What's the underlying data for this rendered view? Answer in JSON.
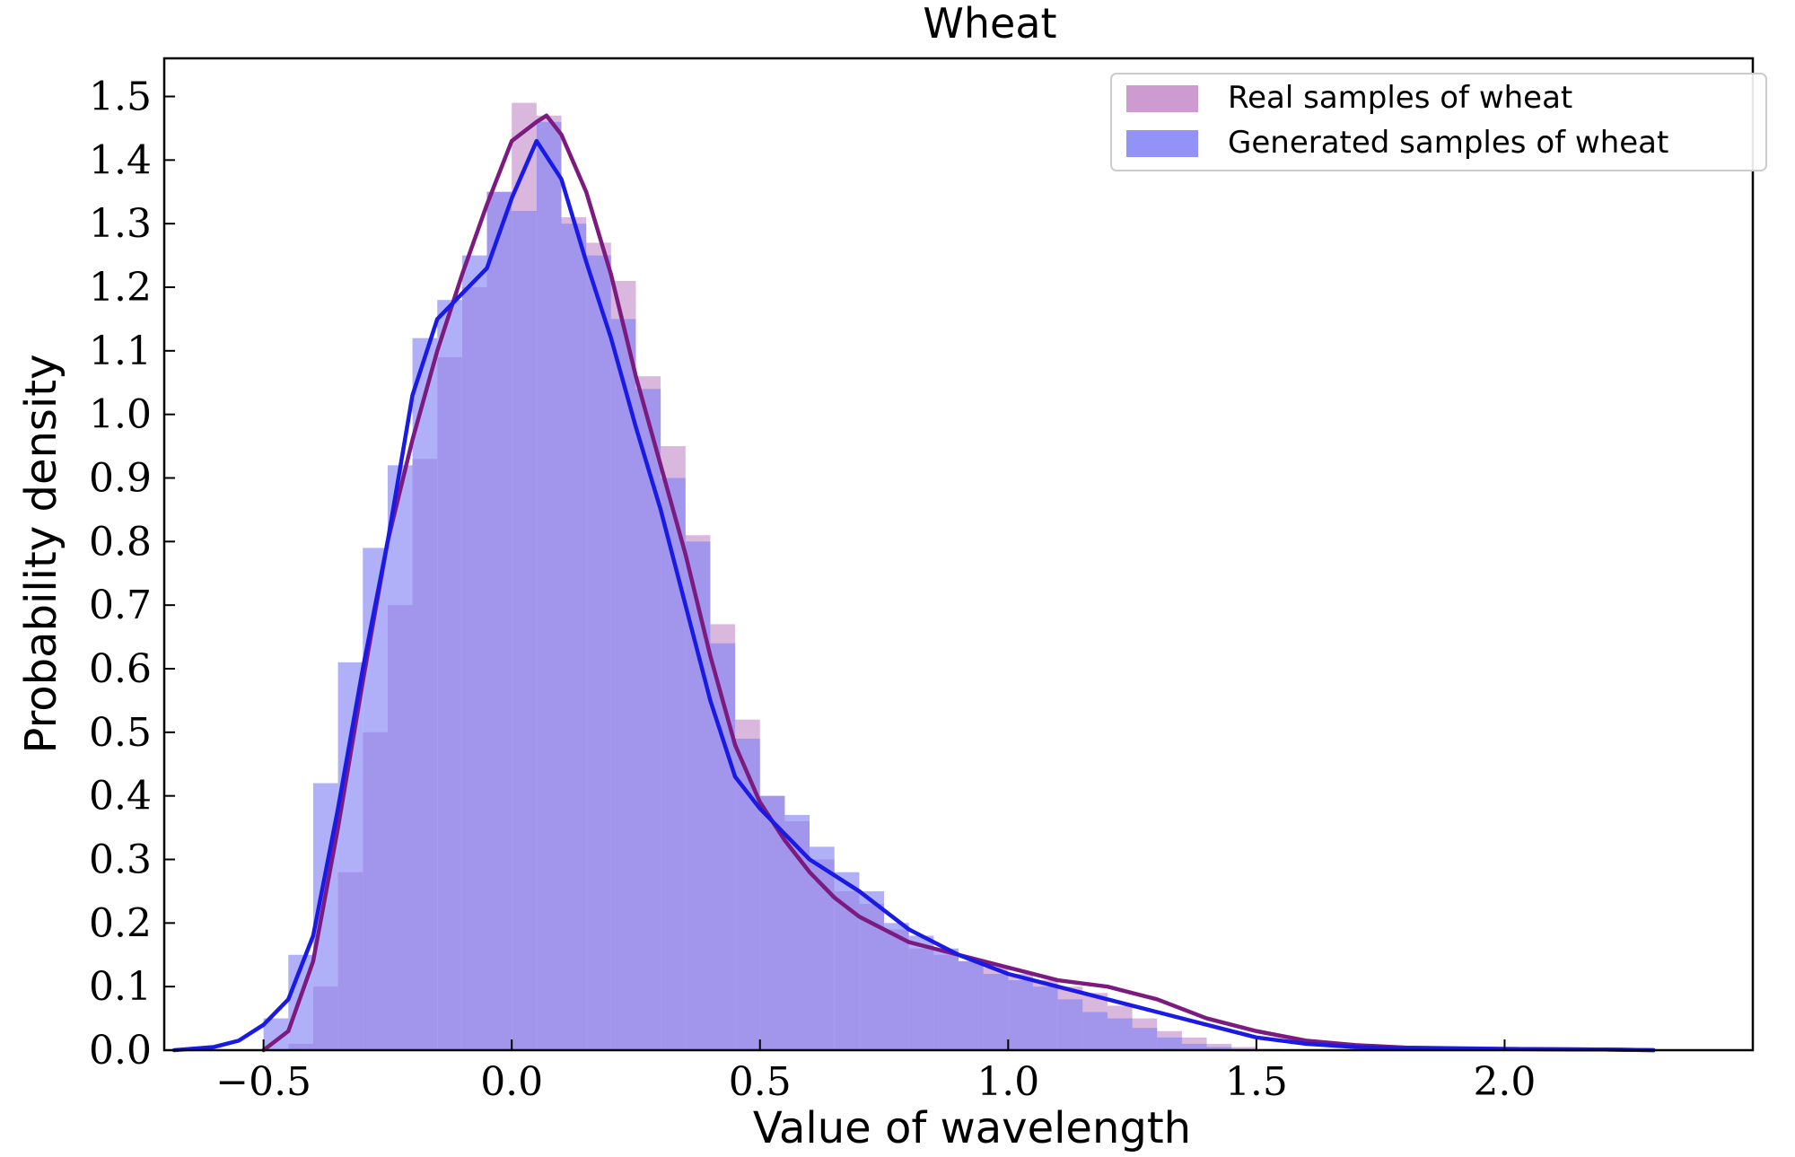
{
  "chart_data": {
    "type": "histogram-kde",
    "title": "Wheat",
    "xlabel": "Value of wavelength",
    "ylabel": "Probability density",
    "xlim": [
      -0.7,
      2.5
    ],
    "ylim": [
      0,
      1.56
    ],
    "xticks": [
      -0.5,
      0.0,
      0.5,
      1.0,
      1.5,
      2.0
    ],
    "xtick_labels": [
      "−0.5",
      "0.0",
      "0.5",
      "1.0",
      "1.5",
      "2.0"
    ],
    "yticks": [
      0.0,
      0.1,
      0.2,
      0.3,
      0.4,
      0.5,
      0.6,
      0.7,
      0.8,
      0.9,
      1.0,
      1.1,
      1.2,
      1.3,
      1.4,
      1.5
    ],
    "ytick_labels": [
      "0.0",
      "0.1",
      "0.2",
      "0.3",
      "0.4",
      "0.5",
      "0.6",
      "0.7",
      "0.8",
      "0.9",
      "1.0",
      "1.1",
      "1.2",
      "1.3",
      "1.4",
      "1.5"
    ],
    "legend_position": "top-right",
    "bin_start": -0.5,
    "bin_width": 0.05,
    "series": [
      {
        "name": "Real samples of wheat",
        "hist_color": "#c48ac8",
        "line_color": "#7b1a7f",
        "hist": [
          0.0,
          0.01,
          0.1,
          0.28,
          0.5,
          0.7,
          0.93,
          1.09,
          1.2,
          1.35,
          1.49,
          1.47,
          1.31,
          1.27,
          1.21,
          1.06,
          0.95,
          0.81,
          0.67,
          0.52,
          0.4,
          0.36,
          0.3,
          0.25,
          0.23,
          0.19,
          0.16,
          0.15,
          0.14,
          0.13,
          0.12,
          0.11,
          0.1,
          0.09,
          0.07,
          0.05,
          0.03,
          0.02,
          0.01,
          0.005,
          0.002
        ],
        "kde_x": [
          -0.5,
          -0.45,
          -0.4,
          -0.35,
          -0.3,
          -0.25,
          -0.2,
          -0.15,
          -0.1,
          -0.05,
          0.0,
          0.05,
          0.07,
          0.1,
          0.15,
          0.2,
          0.25,
          0.3,
          0.35,
          0.4,
          0.45,
          0.5,
          0.55,
          0.6,
          0.65,
          0.7,
          0.8,
          0.9,
          1.0,
          1.1,
          1.2,
          1.3,
          1.4,
          1.5,
          1.6,
          1.7,
          1.8,
          2.0,
          2.2,
          2.3
        ],
        "kde_y": [
          0.0,
          0.03,
          0.14,
          0.35,
          0.58,
          0.8,
          0.96,
          1.1,
          1.22,
          1.33,
          1.43,
          1.46,
          1.47,
          1.44,
          1.35,
          1.22,
          1.06,
          0.92,
          0.78,
          0.62,
          0.48,
          0.39,
          0.33,
          0.28,
          0.24,
          0.21,
          0.17,
          0.15,
          0.13,
          0.11,
          0.1,
          0.08,
          0.05,
          0.03,
          0.015,
          0.008,
          0.004,
          0.002,
          0.001,
          0.0
        ]
      },
      {
        "name": "Generated samples of wheat",
        "hist_color": "#8080f6",
        "line_color": "#1a1ae6",
        "hist": [
          0.05,
          0.15,
          0.42,
          0.61,
          0.79,
          0.92,
          1.12,
          1.18,
          1.25,
          1.35,
          1.32,
          1.46,
          1.3,
          1.25,
          1.15,
          1.04,
          0.9,
          0.8,
          0.64,
          0.49,
          0.4,
          0.37,
          0.32,
          0.28,
          0.25,
          0.2,
          0.18,
          0.16,
          0.14,
          0.12,
          0.11,
          0.1,
          0.08,
          0.06,
          0.05,
          0.035,
          0.02,
          0.01,
          0.005,
          0.002,
          0.001
        ],
        "kde_x": [
          -0.68,
          -0.6,
          -0.55,
          -0.5,
          -0.45,
          -0.4,
          -0.35,
          -0.3,
          -0.25,
          -0.2,
          -0.15,
          -0.1,
          -0.05,
          0.0,
          0.05,
          0.1,
          0.15,
          0.2,
          0.25,
          0.3,
          0.35,
          0.4,
          0.45,
          0.5,
          0.55,
          0.6,
          0.7,
          0.8,
          0.9,
          1.0,
          1.1,
          1.2,
          1.3,
          1.4,
          1.5,
          1.6,
          1.7,
          1.8,
          2.0,
          2.2,
          2.3
        ],
        "kde_y": [
          0.0,
          0.005,
          0.015,
          0.04,
          0.08,
          0.18,
          0.38,
          0.6,
          0.8,
          1.03,
          1.15,
          1.19,
          1.23,
          1.34,
          1.43,
          1.37,
          1.24,
          1.12,
          0.98,
          0.85,
          0.7,
          0.55,
          0.43,
          0.38,
          0.34,
          0.3,
          0.25,
          0.19,
          0.15,
          0.12,
          0.1,
          0.08,
          0.06,
          0.04,
          0.02,
          0.01,
          0.005,
          0.003,
          0.002,
          0.001,
          0.0
        ]
      }
    ]
  }
}
